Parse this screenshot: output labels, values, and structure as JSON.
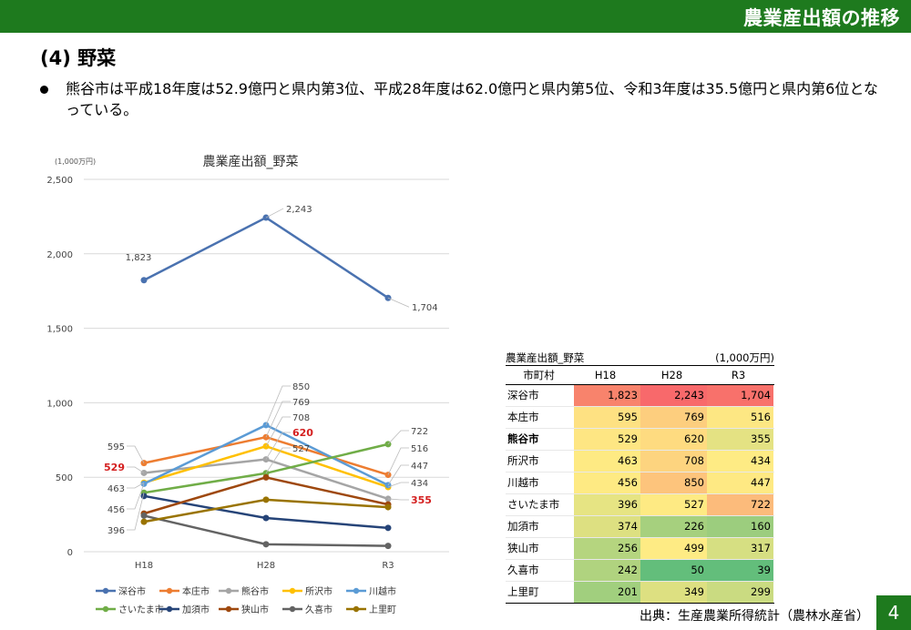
{
  "header": {
    "title": "農業産出額の推移"
  },
  "section_title": "(4) 野菜",
  "bullet": "熊谷市は平成18年度は52.9億円と県内第3位、平成28年度は62.0億円と県内第5位、令和3年度は35.5億円と県内第6位となっている。",
  "chart_data": {
    "type": "line",
    "title": "農業産出額_野菜",
    "unit_label": "(1,000万円)",
    "categories": [
      "H18",
      "H28",
      "R3"
    ],
    "ylim": [
      0,
      2500
    ],
    "yticks": [
      0,
      500,
      1000,
      1500,
      2000,
      2500
    ],
    "ytick_labels": [
      "0",
      "500",
      "1,000",
      "1,500",
      "2,000",
      "2,500"
    ],
    "grid": true,
    "legend_position": "bottom",
    "highlight_series": "熊谷市",
    "highlight_color": "#d42020",
    "series": [
      {
        "name": "深谷市",
        "values": [
          1823,
          2243,
          1704
        ],
        "color": "#4a72b0"
      },
      {
        "name": "本庄市",
        "values": [
          595,
          769,
          516
        ],
        "color": "#ed7d31"
      },
      {
        "name": "熊谷市",
        "values": [
          529,
          620,
          355
        ],
        "color": "#a5a5a5"
      },
      {
        "name": "所沢市",
        "values": [
          463,
          708,
          434
        ],
        "color": "#ffc000"
      },
      {
        "name": "川越市",
        "values": [
          456,
          850,
          447
        ],
        "color": "#5b9bd5"
      },
      {
        "name": "さいたま市",
        "values": [
          396,
          527,
          722
        ],
        "color": "#70ad47"
      },
      {
        "name": "加須市",
        "values": [
          374,
          226,
          160
        ],
        "color": "#264478"
      },
      {
        "name": "狭山市",
        "values": [
          256,
          499,
          317
        ],
        "color": "#9e480e"
      },
      {
        "name": "久喜市",
        "values": [
          242,
          50,
          39
        ],
        "color": "#636363"
      },
      {
        "name": "上里町",
        "values": [
          201,
          349,
          299
        ],
        "color": "#997300"
      }
    ],
    "data_labels": [
      {
        "text": "1,823",
        "series": "深谷市",
        "point": 0
      },
      {
        "text": "2,243",
        "series": "深谷市",
        "point": 1
      },
      {
        "text": "1,704",
        "series": "深谷市",
        "point": 2
      },
      {
        "text": "595",
        "series": "本庄市",
        "point": 0
      },
      {
        "text": "529",
        "series": "熊谷市",
        "point": 0,
        "highlight": true
      },
      {
        "text": "463",
        "series": "所沢市",
        "point": 0
      },
      {
        "text": "456",
        "series": "川越市",
        "point": 0
      },
      {
        "text": "396",
        "series": "さいたま市",
        "point": 0
      },
      {
        "text": "850",
        "series": "川越市",
        "point": 1
      },
      {
        "text": "769",
        "series": "本庄市",
        "point": 1
      },
      {
        "text": "708",
        "series": "所沢市",
        "point": 1
      },
      {
        "text": "620",
        "series": "熊谷市",
        "point": 1,
        "highlight": true
      },
      {
        "text": "527",
        "series": "さいたま市",
        "point": 1
      },
      {
        "text": "722",
        "series": "さいたま市",
        "point": 2
      },
      {
        "text": "516",
        "series": "本庄市",
        "point": 2
      },
      {
        "text": "447",
        "series": "川越市",
        "point": 2
      },
      {
        "text": "434",
        "series": "所沢市",
        "point": 2
      },
      {
        "text": "355",
        "series": "熊谷市",
        "point": 2,
        "highlight": true
      }
    ]
  },
  "table": {
    "title": "農業産出額_野菜",
    "unit": "(1,000万円)",
    "headers": [
      "市町村",
      "H18",
      "H28",
      "R3"
    ],
    "rows": [
      {
        "name": "深谷市",
        "values": [
          "1,823",
          "2,243",
          "1,704"
        ],
        "colors": [
          "#f8836c",
          "#f8696b",
          "#f8716b"
        ]
      },
      {
        "name": "本庄市",
        "values": [
          "595",
          "769",
          "516"
        ],
        "colors": [
          "#fee182",
          "#fdce7e",
          "#fde783"
        ]
      },
      {
        "name": "熊谷市",
        "values": [
          "529",
          "620",
          "355"
        ],
        "colors": [
          "#fee683",
          "#fedb80",
          "#e4e283"
        ],
        "bold": true
      },
      {
        "name": "所沢市",
        "values": [
          "463",
          "708",
          "434"
        ],
        "colors": [
          "#feea83",
          "#fdd47f",
          "#feeb84"
        ]
      },
      {
        "name": "川越市",
        "values": [
          "456",
          "850",
          "447"
        ],
        "colors": [
          "#feea83",
          "#fdc47c",
          "#fee983"
        ]
      },
      {
        "name": "さいたま市",
        "values": [
          "396",
          "527",
          "722"
        ],
        "colors": [
          "#e6e483",
          "#feea83",
          "#fcbb7b"
        ]
      },
      {
        "name": "加須市",
        "values": [
          "374",
          "226",
          "160"
        ],
        "colors": [
          "#dde081",
          "#a6d07e",
          "#9ccd7e"
        ]
      },
      {
        "name": "狭山市",
        "values": [
          "256",
          "499",
          "317"
        ],
        "colors": [
          "#b5d57f",
          "#feeb84",
          "#d6df82"
        ]
      },
      {
        "name": "久喜市",
        "values": [
          "242",
          "50",
          "39"
        ],
        "colors": [
          "#b0d37f",
          "#63be7b",
          "#63be7b"
        ]
      },
      {
        "name": "上里町",
        "values": [
          "201",
          "349",
          "299"
        ],
        "colors": [
          "#a1cf7e",
          "#dde081",
          "#cadb81"
        ]
      }
    ]
  },
  "source": "出典：生産農業所得統計（農林水産省）",
  "page_number": "4"
}
